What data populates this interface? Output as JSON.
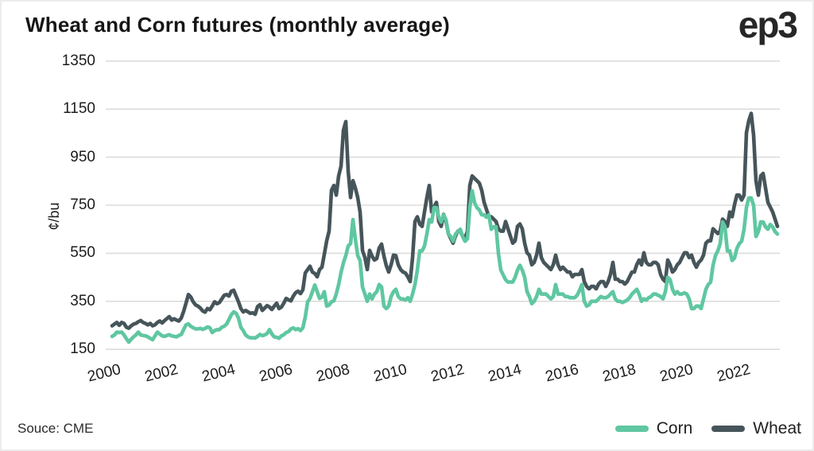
{
  "header": {
    "title": "Wheat and Corn futures (monthly average)",
    "logo": "ep3"
  },
  "axes": {
    "y_title": "¢/bu",
    "y_ticks": [
      1350,
      1150,
      950,
      750,
      550,
      350,
      150
    ],
    "x_tick_years": [
      2000,
      2002,
      2004,
      2006,
      2008,
      2010,
      2012,
      2014,
      2016,
      2018,
      2020,
      2022
    ]
  },
  "legend": {
    "corn": "Corn",
    "wheat": "Wheat"
  },
  "footer": {
    "source": "Souce: CME"
  },
  "colors": {
    "corn": "#5fc7a1",
    "wheat": "#46555a",
    "grid": "#dcdcdc",
    "text": "#1c1c1c",
    "background": "#ffffff"
  },
  "chart_data": {
    "type": "line",
    "title": "Wheat and Corn futures (monthly average)",
    "xlabel": "",
    "ylabel": "¢/bu",
    "unit": "cents per bushel",
    "frequency": "monthly",
    "x_start": "2000-01",
    "x_end": "2023-04",
    "x_tick_years": [
      2000,
      2002,
      2004,
      2006,
      2008,
      2010,
      2012,
      2014,
      2016,
      2018,
      2020,
      2022
    ],
    "y_ticks": [
      1350,
      1150,
      950,
      750,
      550,
      350,
      150
    ],
    "ylim": [
      150,
      1350
    ],
    "grid": "horizontal",
    "legend_position": "bottom-right",
    "source": "Souce: CME",
    "series": [
      {
        "name": "Corn",
        "color": "#5fc7a1",
        "values": [
          204,
          210,
          222,
          220,
          222,
          210,
          194,
          180,
          192,
          202,
          210,
          222,
          210,
          208,
          206,
          202,
          196,
          190,
          206,
          222,
          214,
          206,
          204,
          208,
          211,
          206,
          204,
          202,
          208,
          212,
          232,
          252,
          256,
          246,
          240,
          235,
          235,
          237,
          233,
          237,
          243,
          240,
          220,
          228,
          232,
          232,
          242,
          246,
          255,
          274,
          294,
          306,
          300,
          280,
          242,
          228,
          210,
          202,
          198,
          198,
          197,
          204,
          212,
          207,
          210,
          216,
          232,
          214,
          202,
          200,
          196,
          206,
          211,
          220,
          224,
          235,
          239,
          232,
          236,
          228,
          240,
          284,
          348,
          362,
          390,
          418,
          390,
          362,
          368,
          390,
          330,
          334,
          348,
          352,
          380,
          420,
          470,
          510,
          540,
          580,
          590,
          690,
          610,
          540,
          520,
          410,
          380,
          350,
          380,
          360,
          380,
          390,
          420,
          410,
          330,
          320,
          330,
          370,
          390,
          400,
          370,
          360,
          360,
          355,
          365,
          350,
          380,
          420,
          480,
          560,
          560,
          580,
          630,
          690,
          680,
          740,
          740,
          700,
          680,
          710,
          690,
          630,
          620,
          600,
          630,
          640,
          650,
          620,
          600,
          610,
          740,
          810,
          760,
          740,
          730,
          710,
          710,
          700,
          710,
          650,
          660,
          660,
          550,
          480,
          460,
          440,
          430,
          430,
          430,
          450,
          480,
          500,
          480,
          450,
          390,
          370,
          340,
          350,
          370,
          400,
          380,
          380,
          380,
          370,
          360,
          370,
          420,
          380,
          380,
          380,
          370,
          370,
          365,
          365,
          365,
          375,
          395,
          420,
          350,
          330,
          335,
          350,
          350,
          350,
          360,
          370,
          365,
          365,
          370,
          380,
          390,
          360,
          350,
          350,
          345,
          350,
          355,
          365,
          380,
          390,
          400,
          380,
          350,
          360,
          355,
          365,
          370,
          380,
          380,
          375,
          370,
          360,
          390,
          450,
          440,
          400,
          380,
          390,
          380,
          380,
          385,
          380,
          360,
          320,
          320,
          330,
          330,
          320,
          360,
          400,
          420,
          430,
          500,
          540,
          560,
          590,
          680,
          660,
          560,
          560,
          520,
          530,
          570,
          590,
          600,
          650,
          740,
          780,
          780,
          750,
          620,
          640,
          680,
          680,
          660,
          650,
          670,
          660,
          640,
          630
        ]
      },
      {
        "name": "Wheat",
        "color": "#46555a",
        "values": [
          248,
          255,
          262,
          250,
          262,
          258,
          242,
          238,
          248,
          255,
          258,
          265,
          270,
          262,
          258,
          252,
          258,
          248,
          252,
          262,
          268,
          260,
          270,
          278,
          286,
          272,
          277,
          272,
          268,
          280,
          308,
          342,
          378,
          368,
          348,
          335,
          330,
          322,
          310,
          305,
          320,
          315,
          330,
          348,
          340,
          345,
          360,
          375,
          378,
          372,
          392,
          396,
          372,
          348,
          320,
          306,
          312,
          306,
          300,
          302,
          296,
          328,
          336,
          312,
          322,
          332,
          326,
          316,
          330,
          342,
          320,
          326,
          342,
          362,
          356,
          352,
          372,
          386,
          392,
          382,
          398,
          468,
          482,
          496,
          472,
          466,
          452,
          482,
          492,
          546,
          602,
          642,
          812,
          832,
          792,
          872,
          912,
          1062,
          1098,
          892,
          782,
          852,
          822,
          782,
          722,
          562,
          532,
          482,
          562,
          538,
          522,
          528,
          572,
          588,
          538,
          498,
          472,
          502,
          542,
          540,
          502,
          482,
          472,
          468,
          452,
          432,
          532,
          682,
          702,
          672,
          662,
          722,
          782,
          832,
          722,
          742,
          762,
          682,
          662,
          712,
          682,
          632,
          612,
          592,
          622,
          642,
          642,
          622,
          612,
          642,
          832,
          872,
          862,
          852,
          842,
          812,
          762,
          732,
          702,
          702,
          692,
          682,
          652,
          642,
          642,
          682,
          652,
          622,
          592,
          602,
          662,
          672,
          652,
          592,
          552,
          542,
          502,
          512,
          542,
          592,
          532,
          512,
          502,
          492,
          482,
          502,
          542,
          502,
          482,
          492,
          482,
          472,
          472,
          452,
          462,
          462,
          462,
          482,
          432,
          412,
          402,
          412,
          412,
          402,
          422,
          432,
          432,
          412,
          432,
          462,
          512,
          442,
          442,
          432,
          432,
          422,
          432,
          452,
          472,
          472,
          502,
          522,
          502,
          552,
          512,
          502,
          502,
          512,
          512,
          502,
          462,
          442,
          432,
          522,
          502,
          472,
          482,
          502,
          512,
          532,
          552,
          552,
          532,
          542,
          512,
          492,
          512,
          522,
          542,
          592,
          602,
          602,
          652,
          642,
          632,
          642,
          692,
          682,
          662,
          722,
          702,
          752,
          792,
          792,
          772,
          792,
          1052,
          1102,
          1132,
          1042,
          852,
          792,
          872,
          882,
          822,
          762,
          742,
          722,
          692,
          662
        ]
      }
    ]
  }
}
